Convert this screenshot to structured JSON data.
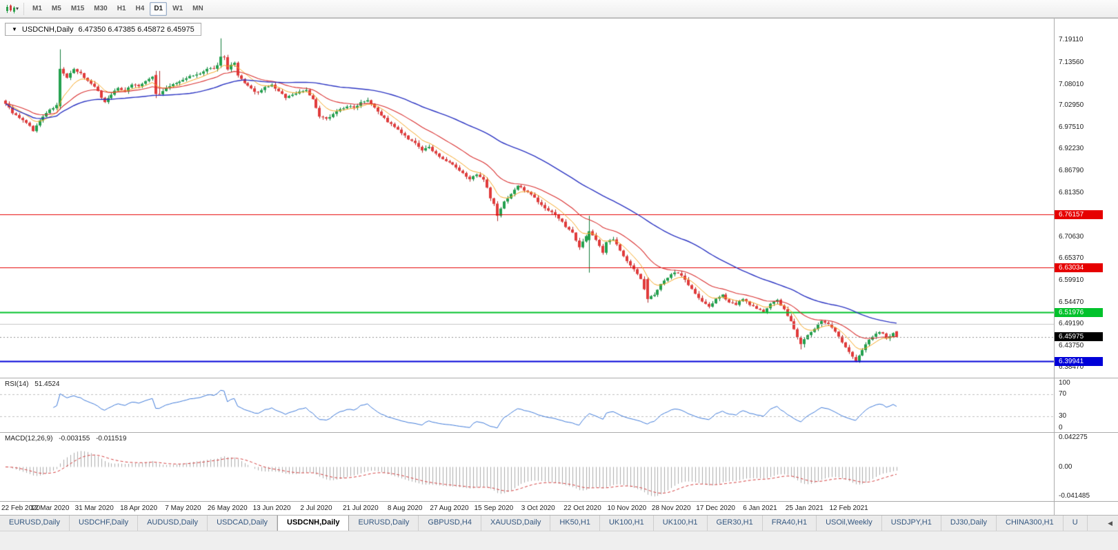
{
  "toolbar": {
    "timeframes": [
      "M1",
      "M5",
      "M15",
      "M30",
      "H1",
      "H4",
      "D1",
      "W1",
      "MN"
    ],
    "active": "D1"
  },
  "icons": {
    "chart_type": "candlestick-chart",
    "dropdown_caret": "▾",
    "header_dropdown": "▼",
    "tab_scroll": "◀"
  },
  "window": {
    "header_symbol": "USDCNH,Daily",
    "header_quote": "6.47350 6.47385 6.45872 6.45975"
  },
  "chart_data": {
    "type": "candlestick",
    "title": "USDCNH,Daily",
    "symbol": "USDCNH",
    "timeframe": "Daily",
    "quote": {
      "open": 6.4735,
      "high": 6.47385,
      "low": 6.45872,
      "close": 6.45975
    },
    "price_range": {
      "min": 6.35925,
      "max": 7.24203
    },
    "price_axis_labels": [
      "7.19110",
      "7.13560",
      "7.08010",
      "7.02950",
      "6.97510",
      "6.92230",
      "6.86790",
      "6.81350",
      "6.70630",
      "6.65370",
      "6.59910",
      "6.54470",
      "6.49190",
      "6.43750",
      "6.38470"
    ],
    "x_labels": [
      "22 Feb 2020",
      "12 Mar 2020",
      "31 Mar 2020",
      "18 Apr 2020",
      "7 May 2020",
      "26 May 2020",
      "13 Jun 2020",
      "2 Jul 2020",
      "21 Jul 2020",
      "8 Aug 2020",
      "27 Aug 2020",
      "15 Sep 2020",
      "3 Oct 2020",
      "22 Oct 2020",
      "10 Nov 2020",
      "28 Nov 2020",
      "17 Dec 2020",
      "6 Jan 2021",
      "25 Jan 2021",
      "12 Feb 2021"
    ],
    "bars_per_label": 13,
    "bar_count": 262,
    "seed": 9,
    "levels": [
      {
        "price": 6.76157,
        "label": "6.76157",
        "color": "#E60000",
        "width": 1
      },
      {
        "price": 6.63034,
        "label": "6.63034",
        "color": "#E60000",
        "width": 1
      },
      {
        "price": 6.51976,
        "label": "6.51976",
        "color": "#00C22B",
        "width": 2
      },
      {
        "price": 6.39941,
        "label": "6.39941",
        "color": "#0000D8",
        "width": 2
      },
      {
        "price": 6.4919,
        "label": null,
        "color": "#C4C4C4",
        "width": 1
      }
    ],
    "current_price": {
      "value": 6.45975,
      "label": "6.45975",
      "color": "#000000"
    },
    "moving_averages": [
      {
        "type": "ema",
        "period": 8,
        "color": "#F5A623",
        "width": 1
      },
      {
        "type": "ema",
        "period": 21,
        "color": "#D93030",
        "width": 1.1
      },
      {
        "type": "sma",
        "period": 55,
        "color": "#2B34C2",
        "width": 1.4
      }
    ],
    "candle_colors": {
      "up": "#23A14E",
      "up_border": "#0E7A37",
      "down": "#E13B3B",
      "down_border": "#AC2424",
      "background": "#FFFFFF"
    },
    "indicators": {
      "rsi": {
        "name": "RSI(14)",
        "period": 14,
        "current": "51.4524",
        "upper": 70,
        "lower": 30,
        "axis_labels": [
          "100",
          "70",
          "30",
          "0"
        ],
        "color": "#3C78D8"
      },
      "macd": {
        "name": "MACD(12,26,9)",
        "fast": 12,
        "slow": 26,
        "signal_period": 9,
        "current_main": "-0.003155",
        "current_signal": "-0.011519",
        "axis_labels": [
          "0.042275",
          "0.00",
          "-0.041485"
        ],
        "hist_color": "#ABABAB",
        "signal_color": "#D23B3B"
      }
    },
    "close_path_anchors": [
      [
        0,
        7.035
      ],
      [
        2,
        7.012
      ],
      [
        4,
        6.998
      ],
      [
        6,
        6.988
      ],
      [
        8,
        6.968
      ],
      [
        10,
        6.992
      ],
      [
        12,
        7.012
      ],
      [
        14,
        7.024
      ],
      [
        15,
        7.03
      ],
      [
        16,
        7.12
      ],
      [
        18,
        7.098
      ],
      [
        20,
        7.118
      ],
      [
        22,
        7.108
      ],
      [
        24,
        7.09
      ],
      [
        26,
        7.078
      ],
      [
        28,
        7.05
      ],
      [
        29,
        7.038
      ],
      [
        31,
        7.058
      ],
      [
        33,
        7.072
      ],
      [
        35,
        7.066
      ],
      [
        37,
        7.082
      ],
      [
        39,
        7.078
      ],
      [
        41,
        7.088
      ],
      [
        43,
        7.102
      ],
      [
        44,
        7.112
      ],
      [
        45,
        7.058
      ],
      [
        47,
        7.072
      ],
      [
        49,
        7.082
      ],
      [
        51,
        7.088
      ],
      [
        53,
        7.098
      ],
      [
        55,
        7.103
      ],
      [
        57,
        7.108
      ],
      [
        59,
        7.118
      ],
      [
        61,
        7.122
      ],
      [
        62,
        7.128
      ],
      [
        63,
        7.15
      ],
      [
        64,
        7.148
      ],
      [
        65,
        7.118
      ],
      [
        66,
        7.128
      ],
      [
        67,
        7.134
      ],
      [
        68,
        7.102
      ],
      [
        70,
        7.086
      ],
      [
        72,
        7.07
      ],
      [
        74,
        7.06
      ],
      [
        76,
        7.074
      ],
      [
        78,
        7.08
      ],
      [
        80,
        7.064
      ],
      [
        82,
        7.05
      ],
      [
        84,
        7.056
      ],
      [
        86,
        7.064
      ],
      [
        88,
        7.068
      ],
      [
        90,
        7.044
      ],
      [
        92,
        7.002
      ],
      [
        94,
        6.996
      ],
      [
        96,
        7.01
      ],
      [
        98,
        7.02
      ],
      [
        100,
        7.028
      ],
      [
        102,
        7.024
      ],
      [
        104,
        7.038
      ],
      [
        106,
        7.044
      ],
      [
        108,
        7.026
      ],
      [
        110,
        7.006
      ],
      [
        112,
        6.99
      ],
      [
        114,
        6.976
      ],
      [
        116,
        6.962
      ],
      [
        118,
        6.946
      ],
      [
        120,
        6.936
      ],
      [
        122,
        6.92
      ],
      [
        124,
        6.926
      ],
      [
        126,
        6.912
      ],
      [
        128,
        6.896
      ],
      [
        130,
        6.89
      ],
      [
        132,
        6.876
      ],
      [
        134,
        6.862
      ],
      [
        136,
        6.85
      ],
      [
        138,
        6.858
      ],
      [
        140,
        6.846
      ],
      [
        141,
        6.826
      ],
      [
        142,
        6.8
      ],
      [
        143,
        6.786
      ],
      [
        144,
        6.758
      ],
      [
        145,
        6.776
      ],
      [
        146,
        6.792
      ],
      [
        148,
        6.812
      ],
      [
        150,
        6.832
      ],
      [
        152,
        6.822
      ],
      [
        154,
        6.812
      ],
      [
        156,
        6.792
      ],
      [
        158,
        6.776
      ],
      [
        160,
        6.768
      ],
      [
        162,
        6.752
      ],
      [
        164,
        6.732
      ],
      [
        166,
        6.716
      ],
      [
        168,
        6.682
      ],
      [
        169,
        6.696
      ],
      [
        171,
        6.72
      ],
      [
        173,
        6.7
      ],
      [
        175,
        6.668
      ],
      [
        176,
        6.692
      ],
      [
        178,
        6.7
      ],
      [
        180,
        6.672
      ],
      [
        182,
        6.648
      ],
      [
        184,
        6.626
      ],
      [
        186,
        6.602
      ],
      [
        188,
        6.553
      ],
      [
        190,
        6.565
      ],
      [
        192,
        6.588
      ],
      [
        194,
        6.606
      ],
      [
        196,
        6.62
      ],
      [
        198,
        6.612
      ],
      [
        200,
        6.588
      ],
      [
        202,
        6.566
      ],
      [
        204,
        6.545
      ],
      [
        206,
        6.535
      ],
      [
        208,
        6.552
      ],
      [
        210,
        6.562
      ],
      [
        212,
        6.546
      ],
      [
        214,
        6.54
      ],
      [
        216,
        6.552
      ],
      [
        218,
        6.54
      ],
      [
        220,
        6.528
      ],
      [
        222,
        6.522
      ],
      [
        224,
        6.542
      ],
      [
        226,
        6.55
      ],
      [
        228,
        6.526
      ],
      [
        230,
        6.498
      ],
      [
        232,
        6.458
      ],
      [
        233,
        6.442
      ],
      [
        235,
        6.464
      ],
      [
        237,
        6.48
      ],
      [
        239,
        6.498
      ],
      [
        241,
        6.49
      ],
      [
        243,
        6.474
      ],
      [
        245,
        6.448
      ],
      [
        247,
        6.422
      ],
      [
        248,
        6.41
      ],
      [
        249,
        6.4005
      ],
      [
        250,
        6.413
      ],
      [
        251,
        6.428
      ],
      [
        252,
        6.441
      ],
      [
        253,
        6.451
      ],
      [
        254,
        6.458
      ],
      [
        255,
        6.466
      ],
      [
        256,
        6.472
      ],
      [
        257,
        6.467
      ],
      [
        258,
        6.456
      ],
      [
        259,
        6.462
      ],
      [
        260,
        6.471
      ],
      [
        261,
        6.45975
      ]
    ],
    "special_bars": [
      [
        16,
        7.028,
        7.168,
        7.02,
        7.12
      ],
      [
        44,
        7.105,
        7.115,
        7.048,
        7.058
      ],
      [
        63,
        7.128,
        7.195,
        7.122,
        7.15
      ],
      [
        144,
        6.788,
        6.794,
        6.745,
        6.758
      ],
      [
        171,
        6.698,
        6.758,
        6.618,
        6.72
      ],
      [
        188,
        6.602,
        6.607,
        6.544,
        6.553
      ],
      [
        233,
        6.458,
        6.462,
        6.429,
        6.442
      ],
      [
        249,
        6.41,
        6.416,
        6.3975,
        6.4005
      ],
      [
        261,
        6.4735,
        6.47385,
        6.45872,
        6.45975
      ]
    ]
  },
  "tabs": {
    "items": [
      "EURUSD,Daily",
      "USDCHF,Daily",
      "AUDUSD,Daily",
      "USDCAD,Daily",
      "USDCNH,Daily",
      "EURUSD,Daily",
      "GBPUSD,H4",
      "XAUUSD,Daily",
      "HK50,H1",
      "UK100,H1",
      "UK100,H1",
      "GER30,H1",
      "FRA40,H1",
      "USOil,Weekly",
      "USDJPY,H1",
      "DJ30,Daily",
      "CHINA300,H1",
      "U"
    ],
    "active_index": 4
  }
}
